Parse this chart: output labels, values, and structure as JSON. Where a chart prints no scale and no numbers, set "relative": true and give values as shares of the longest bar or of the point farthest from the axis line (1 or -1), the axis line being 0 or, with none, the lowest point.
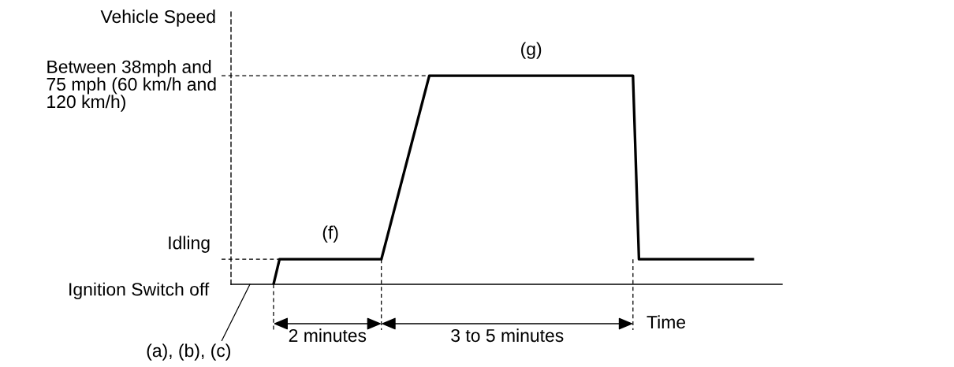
{
  "chart_data": {
    "type": "line",
    "relative": true,
    "ylabel": "Vehicle Speed",
    "xlabel": "Time",
    "categories": [
      null,
      null,
      null,
      null,
      null,
      null,
      null,
      null,
      null,
      null,
      null,
      null,
      null,
      null,
      null,
      null,
      null,
      null,
      null,
      null,
      null,
      null,
      null,
      null,
      null,
      null,
      null,
      null,
      null,
      null,
      null,
      null,
      null,
      null,
      null,
      null,
      null,
      null,
      null,
      null,
      null,
      null,
      null,
      null,
      null,
      null,
      null,
      null,
      null,
      null,
      null,
      null,
      null,
      null,
      null,
      null,
      null,
      null,
      null,
      null,
      null,
      null,
      null,
      null,
      null,
      null,
      null,
      null,
      null,
      null,
      null,
      null,
      null,
      null,
      null,
      null,
      null,
      null,
      null,
      null,
      null
    ],
    "series": [
      {
        "color": "#000000",
        "values": [
          0,
          0.12,
          0.12,
          0.12,
          0.12,
          0.12,
          0.12,
          0.12,
          0.12,
          0.12,
          0.12,
          0.12,
          0.12,
          0.12,
          0.12,
          0.12,
          0.12,
          0.12,
          0.12,
          0.23,
          0.34,
          0.45,
          0.56,
          0.67,
          0.78,
          0.89,
          1,
          1,
          1,
          1,
          1,
          1,
          1,
          1,
          1,
          1,
          1,
          1,
          1,
          1,
          1,
          1,
          1,
          1,
          1,
          1,
          1,
          1,
          1,
          1,
          1,
          1,
          1,
          1,
          1,
          1,
          1,
          1,
          1,
          1,
          1,
          0.12,
          0.12,
          0.12,
          0.12,
          0.12,
          0.12,
          0.12,
          0.12,
          0.12,
          0.12,
          0.12,
          0.12,
          0.12,
          0.12,
          0.12,
          0.12,
          0.12,
          0.12,
          0.12,
          0.12
        ]
      }
    ],
    "ref_lines": [
      {
        "axis": "y",
        "value": 0.12,
        "label": "Idling",
        "line_style": "dashed",
        "color": "#000000"
      },
      {
        "axis": "y",
        "value": 1,
        "label": "Between 38mph and\n75 mph (60 km/h and\n120 km/h)",
        "line_style": "dashed",
        "color": "#000000"
      }
    ],
    "annotations": [
      "Ignition Switch off",
      "(a), (b), (c)",
      {
        "text": "(f)",
        "y": 0.12
      },
      {
        "text": "(g)",
        "y": 1
      },
      "2 minutes",
      "3 to 5 minutes"
    ]
  }
}
